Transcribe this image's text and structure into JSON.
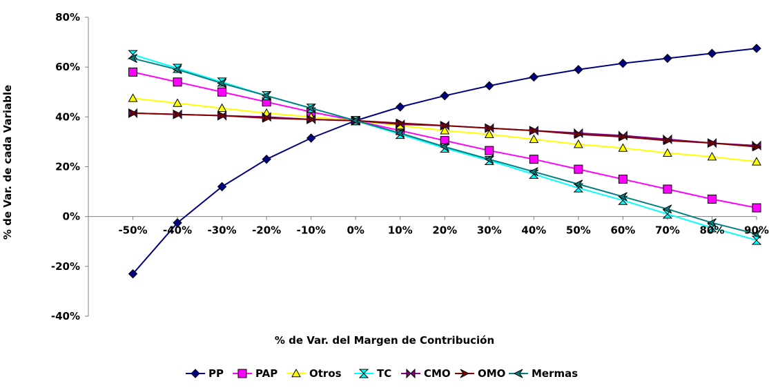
{
  "chart_data": {
    "type": "line",
    "title": "",
    "xlabel": "% de Var. del Margen de Contribución",
    "ylabel": "% de Var. de cada Variable",
    "x": [
      "-50%",
      "-40%",
      "-30%",
      "-20%",
      "-10%",
      "0%",
      "10%",
      "20%",
      "30%",
      "40%",
      "50%",
      "60%",
      "70%",
      "80%",
      "90%"
    ],
    "ylim": [
      -40,
      80
    ],
    "yticks": [
      "80%",
      "60%",
      "40%",
      "20%",
      "0%",
      "-20%",
      "-40%"
    ],
    "legend_position": "bottom",
    "grid": false,
    "series": [
      {
        "name": "PP",
        "color": "#000080",
        "marker": "diamond",
        "values": [
          -23,
          -2.5,
          12,
          23,
          31.5,
          38.5,
          44,
          48.5,
          52.5,
          56,
          59,
          61.5,
          63.5,
          65.5,
          67.5
        ]
      },
      {
        "name": "PAP",
        "color": "#FF00FF",
        "marker": "square",
        "values": [
          58,
          54,
          50,
          46,
          42,
          38.5,
          34.5,
          30.5,
          26.5,
          23,
          19,
          15,
          11,
          7,
          3.5
        ]
      },
      {
        "name": "Otros",
        "color": "#FFFF00",
        "marker": "triangle",
        "values": [
          47.5,
          45.5,
          43.5,
          41.5,
          40,
          38.5,
          36.5,
          34.5,
          33,
          31,
          29,
          27.5,
          25.5,
          24,
          22
        ]
      },
      {
        "name": "TC",
        "color": "#00FFFF",
        "marker": "bowtie-v",
        "values": [
          65,
          59.5,
          54,
          48.5,
          43.5,
          38.5,
          33,
          27.5,
          22.5,
          17,
          11.5,
          6.5,
          1,
          -4.5,
          -9.5
        ]
      },
      {
        "name": "CMO",
        "color": "#800080",
        "marker": "bowtie-h",
        "values": [
          41.5,
          41,
          40.5,
          40,
          39,
          38.5,
          37,
          36.5,
          35.5,
          34.5,
          33.5,
          32.5,
          31,
          29.5,
          28.5
        ]
      },
      {
        "name": "OMO",
        "color": "#800000",
        "marker": "arrow-right",
        "values": [
          41.5,
          41,
          40.5,
          39.5,
          39,
          38.5,
          37.5,
          36.5,
          35.5,
          34.5,
          33,
          32,
          30.5,
          29.5,
          28
        ]
      },
      {
        "name": "Mermas",
        "color": "#008080",
        "marker": "arrow-left",
        "values": [
          63.5,
          59,
          53.5,
          48.5,
          43.5,
          38.5,
          33.5,
          28,
          23,
          18,
          13,
          8,
          3,
          -2.5,
          -7
        ]
      }
    ]
  }
}
